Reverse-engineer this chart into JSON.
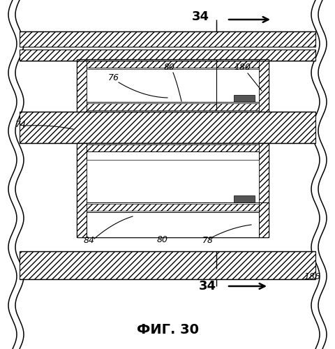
{
  "title": "ФИГ. 30",
  "bg_color": "#ffffff",
  "fig_width": 4.8,
  "fig_height": 5.0,
  "dpi": 100
}
